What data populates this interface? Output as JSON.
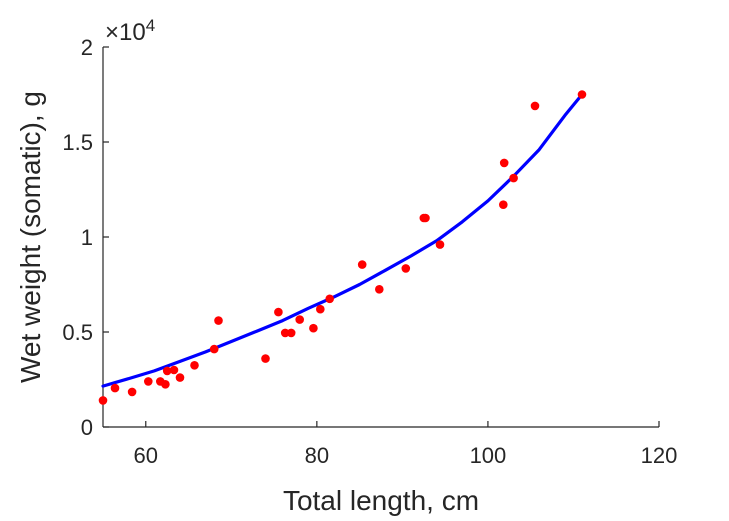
{
  "chart_data": {
    "type": "scatter",
    "xlabel": "Total length, cm",
    "ylabel": "Wet weight (somatic), g",
    "xlim": [
      55,
      120
    ],
    "ylim": [
      0,
      20000
    ],
    "x_ticks": [
      60,
      80,
      100,
      120
    ],
    "y_ticks": [
      0,
      5000,
      10000,
      15000,
      20000
    ],
    "y_tick_labels": [
      "0",
      "0.5",
      "1",
      "1.5",
      "2"
    ],
    "y_multiplier_base": "×10",
    "y_multiplier_exp": "4",
    "grid": false,
    "colors": {
      "points": "#ff0000",
      "fit": "#0000ff",
      "axis": "#262626"
    },
    "series": [
      {
        "kind": "points",
        "x": [
          55,
          56.4,
          58.4,
          60.3,
          61.7,
          62.3,
          62.5,
          63.3,
          64.0,
          65.7,
          68.0,
          68.5,
          74.0,
          75.5,
          76.3,
          77.0,
          78.0,
          79.6,
          80.4,
          81.5,
          85.3,
          87.3,
          90.4,
          92.5,
          92.7,
          94.4,
          101.8,
          101.9,
          103.0,
          105.5,
          111.0
        ],
        "y": [
          1400,
          2050,
          1850,
          2400,
          2400,
          2250,
          2950,
          3000,
          2600,
          3250,
          4100,
          5600,
          3600,
          6050,
          4950,
          4950,
          5650,
          5200,
          6200,
          6750,
          8550,
          7250,
          8350,
          11000,
          11000,
          9600,
          11700,
          13900,
          13100,
          16900,
          17500
        ]
      },
      {
        "kind": "fit",
        "x": [
          55,
          58,
          61,
          64,
          67,
          70,
          73,
          76,
          79,
          82,
          85,
          88,
          91,
          94,
          97,
          100,
          103,
          106,
          109,
          111
        ],
        "y": [
          2150,
          2550,
          2950,
          3450,
          3950,
          4500,
          5050,
          5600,
          6250,
          6850,
          7500,
          8250,
          9000,
          9800,
          10800,
          11900,
          13200,
          14600,
          16400,
          17500
        ]
      }
    ]
  }
}
